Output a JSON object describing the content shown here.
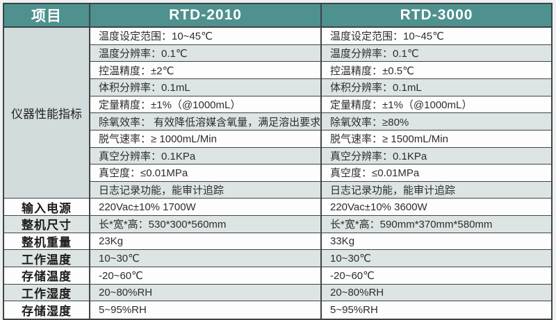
{
  "colors": {
    "header_teal": "#4e918e",
    "stripe_gray": "#dde4e4",
    "row_white": "#fdfdfd",
    "section_cell_bg": "#d3dcdc",
    "border": "#3e4347",
    "page_margin": "#eef1f1",
    "header_text": "#ffffff",
    "body_text": "#2d2d2d"
  },
  "table": {
    "header": {
      "item": "项目",
      "product1": "RTD-2010",
      "product2": "RTD-3000"
    },
    "performance": {
      "label": "仪器性能指标",
      "rows": [
        {
          "p1": "温度设定范围：10~45℃",
          "p2": "温度设定范围：10~45℃"
        },
        {
          "p1": "温度分辨率：0.1℃",
          "p2": "温度分辨率：0.1℃"
        },
        {
          "p1": "控温精度：±2℃",
          "p2": "控温精度：±0.5℃"
        },
        {
          "p1": "体积分辨率：0.1mL",
          "p2": "体积分辨率：0.1mL"
        },
        {
          "p1": "定量精度：±1%（@1000mL）",
          "p2": "定量精度：±1%（@1000mL）"
        },
        {
          "p1": "除氧效率： 有效降低溶媒含氧量，满足溶出要求",
          "p2": "除氧效率：≥80%"
        },
        {
          "p1": "脱气速率：≥ 1000mL/Min",
          "p2": "脱气速率：≥ 1500mL/Min"
        },
        {
          "p1": "真空分辨率：0.1KPa",
          "p2": "真空分辨率：0.1KPa"
        },
        {
          "p1": "真空度：≤0.01MPa",
          "p2": "真空度：≤0.01MPa"
        },
        {
          "p1": "日志记录功能，能审计追踪",
          "p2": "日志记录功能，能审计追踪"
        }
      ]
    },
    "general_rows": [
      {
        "label": "输入电源",
        "p1": "220Vac±10% 1700W",
        "p2": "220Vac±10% 3600W"
      },
      {
        "label": "整机尺寸",
        "p1": "长*宽*高：530*300*560mm",
        "p2": "长*宽*高：590mm*370mm*580mm"
      },
      {
        "label": "整机重量",
        "p1": "23Kg",
        "p2": "33Kg"
      },
      {
        "label": "工作温度",
        "p1": "10~30℃",
        "p2": "10~30℃"
      },
      {
        "label": "存储温度",
        "p1": "-20~60℃",
        "p2": "-20~60℃"
      },
      {
        "label": "工作湿度",
        "p1": "20~80%RH",
        "p2": "20~80%RH"
      },
      {
        "label": "存储湿度",
        "p1": "5~95%RH",
        "p2": "5~95%RH"
      }
    ]
  }
}
